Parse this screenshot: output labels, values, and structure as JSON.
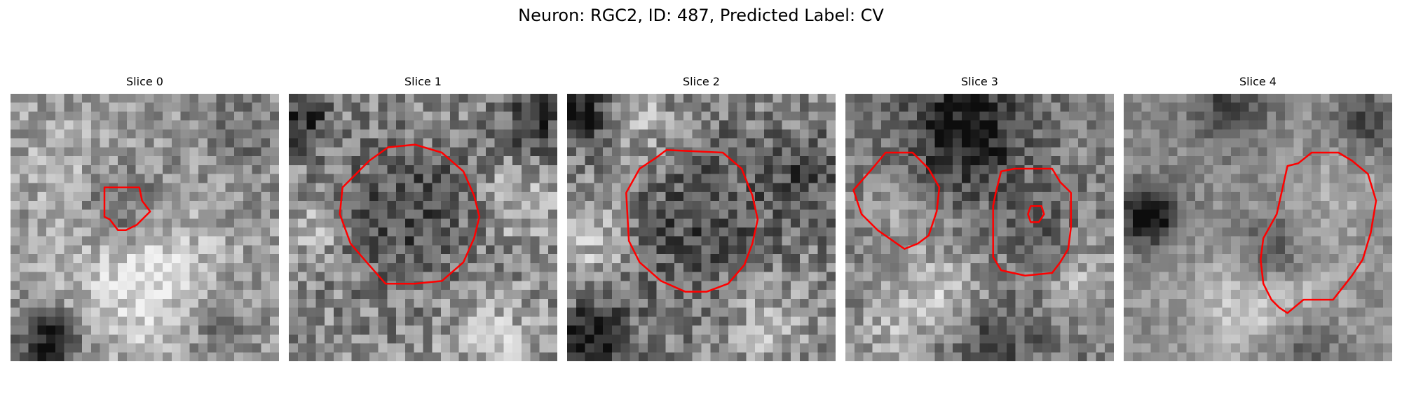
{
  "figure": {
    "title": "Neuron: RGC2, ID: 487, Predicted Label: CV"
  },
  "panels": [
    {
      "title": "Slice 0"
    },
    {
      "title": "Slice 1"
    },
    {
      "title": "Slice 2"
    },
    {
      "title": "Slice 3"
    },
    {
      "title": "Slice 4"
    }
  ],
  "colors": {
    "contour": "#ff0000",
    "background": "#ffffff"
  }
}
